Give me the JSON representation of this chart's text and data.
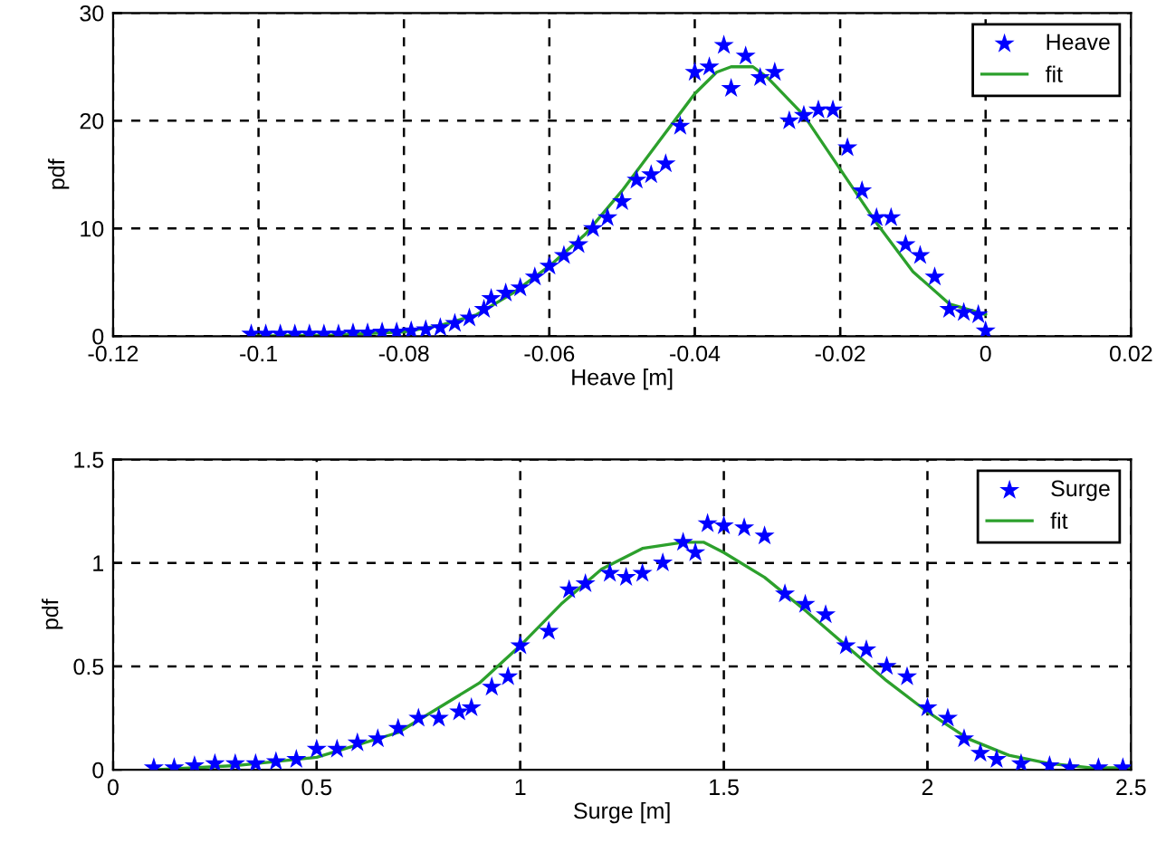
{
  "chart_data": [
    {
      "type": "scatter",
      "xlabel": "Heave [m]",
      "ylabel": "pdf",
      "xlim": [
        -0.12,
        0.02
      ],
      "xticks": [
        {
          "value": -0.12,
          "label": "-0.12"
        },
        {
          "value": -0.1,
          "label": "-0.1"
        },
        {
          "value": -0.08,
          "label": "-0.08"
        },
        {
          "value": -0.06,
          "label": "-0.06"
        },
        {
          "value": -0.04,
          "label": "-0.04"
        },
        {
          "value": -0.02,
          "label": "-0.02"
        },
        0,
        0.02
      ],
      "ylim": [
        0,
        30
      ],
      "yticks": [
        0,
        10,
        20,
        30
      ],
      "grid": true,
      "legend": "top right",
      "series": [
        {
          "name": "Heave",
          "marker": "star",
          "color": "#0000ff",
          "x": [
            -0.101,
            -0.099,
            -0.097,
            -0.095,
            -0.093,
            -0.091,
            -0.089,
            -0.087,
            -0.085,
            -0.083,
            -0.081,
            -0.079,
            -0.077,
            -0.075,
            -0.073,
            -0.071,
            -0.069,
            -0.068,
            -0.066,
            -0.064,
            -0.062,
            -0.06,
            -0.058,
            -0.056,
            -0.054,
            -0.052,
            -0.05,
            -0.048,
            -0.046,
            -0.044,
            -0.042,
            -0.04,
            -0.038,
            -0.036,
            -0.035,
            -0.033,
            -0.031,
            -0.029,
            -0.027,
            -0.025,
            -0.023,
            -0.021,
            -0.019,
            -0.017,
            -0.015,
            -0.013,
            -0.011,
            -0.009,
            -0.007,
            -0.005,
            -0.003,
            -0.001,
            0
          ],
          "values": [
            0.2,
            0.2,
            0.2,
            0.2,
            0.2,
            0.2,
            0.2,
            0.3,
            0.3,
            0.4,
            0.4,
            0.5,
            0.6,
            0.8,
            1.2,
            1.7,
            2.5,
            3.5,
            4,
            4.5,
            5.5,
            6.5,
            7.5,
            8.5,
            10,
            11,
            12.5,
            14.5,
            15,
            16,
            19.5,
            24.5,
            25,
            27,
            23,
            26,
            24,
            24.5,
            20,
            20.5,
            21,
            21,
            17.5,
            13.5,
            11,
            11,
            8.5,
            7.5,
            5.5,
            2.5,
            2.2,
            2,
            0.5
          ]
        },
        {
          "name": "fit",
          "type": "line",
          "marker": "none",
          "line_style": "solid",
          "color": "#2ca02c",
          "x": [
            -0.101,
            -0.09,
            -0.08,
            -0.075,
            -0.07,
            -0.065,
            -0.06,
            -0.055,
            -0.05,
            -0.045,
            -0.04,
            -0.037,
            -0.035,
            -0.032,
            -0.03,
            -0.025,
            -0.02,
            -0.015,
            -0.01,
            -0.005,
            0
          ],
          "values": [
            0,
            0.1,
            0.4,
            1,
            2,
            4,
            6.5,
            9.5,
            13.5,
            18,
            22.5,
            24.5,
            25,
            25,
            24,
            20.5,
            15.5,
            10.5,
            6,
            3,
            2
          ]
        }
      ]
    },
    {
      "type": "scatter",
      "xlabel": "Surge [m]",
      "ylabel": "pdf",
      "xlim": [
        0,
        2.5
      ],
      "xticks": [
        0,
        0.5,
        1,
        1.5,
        2,
        2.5
      ],
      "ylim": [
        0,
        1.5
      ],
      "yticks": [
        0,
        0.5,
        1,
        1.5
      ],
      "grid": true,
      "legend": "top right",
      "series": [
        {
          "name": "Surge",
          "marker": "star",
          "color": "#0000ff",
          "x": [
            0.1,
            0.15,
            0.2,
            0.25,
            0.3,
            0.35,
            0.4,
            0.45,
            0.5,
            0.55,
            0.6,
            0.65,
            0.7,
            0.75,
            0.8,
            0.85,
            0.88,
            0.93,
            0.97,
            1.0,
            1.07,
            1.12,
            1.16,
            1.22,
            1.26,
            1.3,
            1.35,
            1.4,
            1.43,
            1.46,
            1.5,
            1.55,
            1.6,
            1.65,
            1.7,
            1.75,
            1.8,
            1.85,
            1.9,
            1.95,
            2.0,
            2.05,
            2.09,
            2.13,
            2.17,
            2.23,
            2.3,
            2.35,
            2.42,
            2.48
          ],
          "values": [
            0.01,
            0.01,
            0.02,
            0.03,
            0.03,
            0.03,
            0.04,
            0.05,
            0.1,
            0.1,
            0.13,
            0.15,
            0.2,
            0.25,
            0.25,
            0.28,
            0.3,
            0.4,
            0.45,
            0.6,
            0.67,
            0.87,
            0.9,
            0.95,
            0.93,
            0.95,
            1.0,
            1.1,
            1.05,
            1.19,
            1.18,
            1.17,
            1.13,
            0.85,
            0.8,
            0.75,
            0.6,
            0.58,
            0.5,
            0.45,
            0.3,
            0.25,
            0.15,
            0.08,
            0.05,
            0.03,
            0.02,
            0.01,
            0.01,
            0.01
          ]
        },
        {
          "name": "fit",
          "type": "line",
          "marker": "none",
          "line_style": "solid",
          "color": "#2ca02c",
          "x": [
            0.1,
            0.3,
            0.5,
            0.7,
            0.9,
            1.0,
            1.1,
            1.2,
            1.3,
            1.4,
            1.45,
            1.5,
            1.6,
            1.7,
            1.8,
            1.9,
            2.0,
            2.1,
            2.2,
            2.3,
            2.4,
            2.5
          ],
          "values": [
            0,
            0.02,
            0.06,
            0.18,
            0.42,
            0.6,
            0.8,
            0.97,
            1.07,
            1.1,
            1.1,
            1.05,
            0.93,
            0.77,
            0.6,
            0.43,
            0.28,
            0.15,
            0.07,
            0.03,
            0.01,
            0.01
          ]
        }
      ]
    }
  ]
}
